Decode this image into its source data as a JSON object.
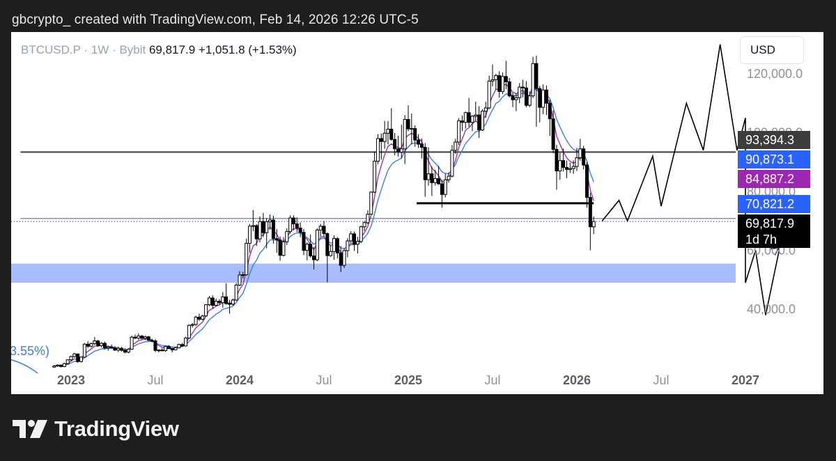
{
  "header": {
    "text": "gbcrypto_ created with TradingView.com, Feb 14, 2026 12:26 UTC-5"
  },
  "legend": {
    "symbol": "BTCUSD.P",
    "sep": "·",
    "interval": "1W",
    "exchange": "Bybit",
    "last": "69,817.9",
    "change": "+1,051.8 (+1.53%)"
  },
  "currency": "USD",
  "footer": {
    "brand": "TradingView"
  },
  "colors": {
    "zone": "#a9bdfc",
    "ma_fast": "#a32fb0",
    "ma_slow": "#3d7bef",
    "tag_gray": "#3c3c3c",
    "tag_blue": "#2962ff",
    "tag_purple": "#9c27b0",
    "tag_black": "#000000"
  },
  "chart_data": {
    "type": "candlestick",
    "symbol": "BTCUSD.P",
    "interval": "1W",
    "ylim": [
      20000,
      131000
    ],
    "yticks": [
      {
        "value": 120000,
        "label": "120,000.0"
      },
      {
        "value": 100000,
        "label": "100,000.0"
      },
      {
        "value": 80000,
        "label": "80,000.0"
      },
      {
        "value": 60000,
        "label": "60,000.0"
      },
      {
        "value": 40000,
        "label": "40,000.0"
      }
    ],
    "xticks": [
      {
        "label": "2023",
        "t": 2023.0,
        "bold": true
      },
      {
        "label": "Jul",
        "t": 2023.5,
        "bold": false
      },
      {
        "label": "2024",
        "t": 2024.0,
        "bold": true
      },
      {
        "label": "Jul",
        "t": 2024.5,
        "bold": false
      },
      {
        "label": "2025",
        "t": 2025.0,
        "bold": true
      },
      {
        "label": "Jul",
        "t": 2025.5,
        "bold": false
      },
      {
        "label": "2026",
        "t": 2026.0,
        "bold": true
      },
      {
        "label": "Jul",
        "t": 2026.5,
        "bold": false
      },
      {
        "label": "2027",
        "t": 2027.0,
        "bold": true
      }
    ],
    "price_tags": [
      {
        "label": "93,394.3",
        "value": 93394.3,
        "color": "#3c3c3c"
      },
      {
        "label": "90,873.1",
        "value": 90873.1,
        "color": "#2962ff"
      },
      {
        "label": "84,887.2",
        "value": 84887.2,
        "color": "#9c27b0"
      },
      {
        "label": "70,821.2",
        "value": 70821.2,
        "color": "#2962ff"
      },
      {
        "label": "69,817.9",
        "value": 69817.9,
        "color": "#000000",
        "sub": "1d 7h"
      }
    ],
    "horizontal_levels": [
      {
        "value": 93394.3,
        "color": "#3c3c3c",
        "from": 2022.7,
        "to": 2027.2,
        "width": 2
      },
      {
        "value": 70821.2,
        "color": "#2962ff",
        "from": 2022.7,
        "to": 2027.2,
        "width": 1
      },
      {
        "value": 76000,
        "color": "#000000",
        "from": 2025.05,
        "to": 2026.1,
        "width": 3
      }
    ],
    "demand_zone": {
      "low": 49000,
      "high": 55500
    },
    "corner_label": "3.55%)",
    "projection_a": [
      [
        2026.15,
        70000
      ],
      [
        2026.25,
        77000
      ],
      [
        2026.3,
        70000
      ],
      [
        2026.45,
        92000
      ],
      [
        2026.5,
        75000
      ],
      [
        2026.65,
        110000
      ],
      [
        2026.75,
        94000
      ],
      [
        2026.85,
        130000
      ],
      [
        2026.95,
        94000
      ],
      [
        2027.0,
        105000
      ],
      [
        2027.0,
        49000
      ]
    ],
    "projection_b": [
      [
        2027.0,
        49000
      ],
      [
        2027.06,
        60000
      ],
      [
        2027.12,
        38000
      ],
      [
        2027.2,
        60000
      ]
    ],
    "projection_arrow": {
      "from": [
        2027.14,
        54000
      ],
      "to": [
        2027.2,
        61000
      ]
    },
    "candles": [
      [
        2022.9,
        20300,
        21000,
        20100,
        20700
      ],
      [
        2022.92,
        20700,
        21300,
        20400,
        21000
      ],
      [
        2022.94,
        21000,
        21200,
        20200,
        20500
      ],
      [
        2022.96,
        20500,
        21800,
        20300,
        21500
      ],
      [
        2022.98,
        21500,
        23000,
        21200,
        22800
      ],
      [
        2023.0,
        22800,
        24200,
        22400,
        23900
      ],
      [
        2023.02,
        23900,
        25200,
        23500,
        24800
      ],
      [
        2023.04,
        24800,
        24900,
        21800,
        22200
      ],
      [
        2023.06,
        22200,
        24000,
        21900,
        23700
      ],
      [
        2023.08,
        23700,
        28500,
        23500,
        28100
      ],
      [
        2023.1,
        28100,
        29100,
        26800,
        27400
      ],
      [
        2023.12,
        27400,
        28700,
        27000,
        28300
      ],
      [
        2023.14,
        28300,
        30500,
        27800,
        29200
      ],
      [
        2023.16,
        29200,
        29600,
        27200,
        27600
      ],
      [
        2023.18,
        27600,
        28800,
        27000,
        28400
      ],
      [
        2023.2,
        28400,
        29000,
        26300,
        26800
      ],
      [
        2023.22,
        26800,
        27600,
        25900,
        27200
      ],
      [
        2023.24,
        27200,
        28000,
        26600,
        26900
      ],
      [
        2023.26,
        26900,
        27500,
        25800,
        26100
      ],
      [
        2023.28,
        26100,
        27300,
        25400,
        26700
      ],
      [
        2023.3,
        26700,
        27200,
        25600,
        26000
      ],
      [
        2023.32,
        26000,
        26800,
        25000,
        25400
      ],
      [
        2023.34,
        25400,
        26700,
        25000,
        26400
      ],
      [
        2023.36,
        26400,
        31000,
        26200,
        30500
      ],
      [
        2023.38,
        30500,
        31400,
        29800,
        30200
      ],
      [
        2023.4,
        30200,
        31800,
        29600,
        30900
      ],
      [
        2023.42,
        30900,
        31200,
        29800,
        30100
      ],
      [
        2023.44,
        30100,
        31000,
        29500,
        30600
      ],
      [
        2023.46,
        30600,
        30900,
        29200,
        29400
      ],
      [
        2023.48,
        29400,
        30000,
        28800,
        29200
      ],
      [
        2023.5,
        29200,
        29800,
        25400,
        26000
      ],
      [
        2023.52,
        26000,
        26400,
        25300,
        26100
      ],
      [
        2023.54,
        26100,
        26800,
        25700,
        25900
      ],
      [
        2023.56,
        25900,
        27600,
        25600,
        27300
      ],
      [
        2023.58,
        27300,
        27800,
        26400,
        26600
      ],
      [
        2023.6,
        26600,
        26900,
        25300,
        26200
      ],
      [
        2023.62,
        26200,
        27100,
        26000,
        26900
      ],
      [
        2023.64,
        26900,
        28300,
        26600,
        28000
      ],
      [
        2023.66,
        28000,
        28600,
        27200,
        27500
      ],
      [
        2023.68,
        27500,
        30600,
        27300,
        30200
      ],
      [
        2023.7,
        30200,
        34800,
        29900,
        34500
      ],
      [
        2023.72,
        34500,
        35300,
        33800,
        34800
      ],
      [
        2023.74,
        34800,
        37800,
        34300,
        37300
      ],
      [
        2023.76,
        37300,
        38500,
        36000,
        36600
      ],
      [
        2023.78,
        36600,
        38100,
        36200,
        37700
      ],
      [
        2023.8,
        37700,
        41800,
        37400,
        41500
      ],
      [
        2023.82,
        41500,
        44500,
        41000,
        43800
      ],
      [
        2023.84,
        43800,
        44700,
        40200,
        41300
      ],
      [
        2023.86,
        41300,
        43600,
        41000,
        42700
      ],
      [
        2023.88,
        42700,
        43400,
        41500,
        42200
      ],
      [
        2023.9,
        42200,
        45800,
        40500,
        44200
      ],
      [
        2023.92,
        44200,
        48800,
        41500,
        41900
      ],
      [
        2023.94,
        41900,
        43200,
        38500,
        41700
      ],
      [
        2023.96,
        41700,
        43600,
        41200,
        43100
      ],
      [
        2023.98,
        43100,
        48900,
        42800,
        48200
      ],
      [
        2024.0,
        48200,
        52900,
        47800,
        51600
      ],
      [
        2024.02,
        51600,
        52700,
        50500,
        51700
      ],
      [
        2024.04,
        51700,
        64000,
        51400,
        62400
      ],
      [
        2024.06,
        62400,
        69000,
        59200,
        68200
      ],
      [
        2024.08,
        68200,
        73700,
        66500,
        68400
      ],
      [
        2024.1,
        68400,
        68900,
        61500,
        63900
      ],
      [
        2024.12,
        63900,
        71500,
        62700,
        69800
      ],
      [
        2024.14,
        69800,
        72700,
        64500,
        66000
      ],
      [
        2024.16,
        66000,
        71000,
        60700,
        69700
      ],
      [
        2024.18,
        69700,
        72200,
        67000,
        70300
      ],
      [
        2024.2,
        70300,
        71800,
        62300,
        64000
      ],
      [
        2024.22,
        64000,
        67200,
        59200,
        63500
      ],
      [
        2024.24,
        63500,
        64700,
        56500,
        58300
      ],
      [
        2024.26,
        58300,
        64500,
        57900,
        62900
      ],
      [
        2024.28,
        62900,
        67500,
        61800,
        66400
      ],
      [
        2024.3,
        66400,
        71900,
        65700,
        71000
      ],
      [
        2024.32,
        71000,
        71900,
        66800,
        69000
      ],
      [
        2024.34,
        69000,
        71200,
        66200,
        67600
      ],
      [
        2024.36,
        67600,
        69500,
        64500,
        66100
      ],
      [
        2024.38,
        66100,
        67300,
        58400,
        60000
      ],
      [
        2024.4,
        60000,
        62700,
        56600,
        62100
      ],
      [
        2024.42,
        62100,
        65400,
        57500,
        58100
      ],
      [
        2024.44,
        58100,
        61100,
        53500,
        56800
      ],
      [
        2024.46,
        56800,
        67500,
        56300,
        66900
      ],
      [
        2024.48,
        66900,
        69000,
        64600,
        68200
      ],
      [
        2024.5,
        68200,
        70000,
        64800,
        65700
      ],
      [
        2024.52,
        65700,
        66100,
        49100,
        58200
      ],
      [
        2024.54,
        58200,
        61700,
        57800,
        59600
      ],
      [
        2024.56,
        59600,
        65100,
        56800,
        64000
      ],
      [
        2024.58,
        64000,
        64500,
        57300,
        59100
      ],
      [
        2024.6,
        59100,
        61400,
        52600,
        54900
      ],
      [
        2024.62,
        54900,
        60700,
        54000,
        59900
      ],
      [
        2024.64,
        59900,
        64100,
        57600,
        63200
      ],
      [
        2024.66,
        63200,
        66500,
        62500,
        65600
      ],
      [
        2024.68,
        65600,
        66400,
        59800,
        62100
      ],
      [
        2024.7,
        62100,
        64600,
        58900,
        63000
      ],
      [
        2024.72,
        63000,
        68400,
        62500,
        68000
      ],
      [
        2024.74,
        68000,
        70000,
        66600,
        69400
      ],
      [
        2024.76,
        69400,
        73600,
        68900,
        72300
      ],
      [
        2024.78,
        72300,
        80000,
        72000,
        79800
      ],
      [
        2024.8,
        79800,
        93500,
        79500,
        90300
      ],
      [
        2024.82,
        90300,
        99500,
        89300,
        98000
      ],
      [
        2024.84,
        98000,
        99700,
        90800,
        97000
      ],
      [
        2024.86,
        97000,
        104000,
        94500,
        99800
      ],
      [
        2024.88,
        99800,
        104000,
        96000,
        101200
      ],
      [
        2024.9,
        101200,
        108300,
        97300,
        97700
      ],
      [
        2024.92,
        97700,
        99900,
        92300,
        94500
      ],
      [
        2024.94,
        94500,
        98900,
        91900,
        93400
      ],
      [
        2024.96,
        93400,
        102700,
        91200,
        94500
      ],
      [
        2024.98,
        94500,
        106000,
        89300,
        104500
      ],
      [
        2025.0,
        104500,
        109300,
        100500,
        101300
      ],
      [
        2025.02,
        101300,
        106500,
        96000,
        101400
      ],
      [
        2025.04,
        101400,
        102500,
        95200,
        97500
      ],
      [
        2025.06,
        97500,
        99500,
        94800,
        96100
      ],
      [
        2025.08,
        96100,
        98000,
        91200,
        95000
      ],
      [
        2025.1,
        95000,
        96500,
        78200,
        84000
      ],
      [
        2025.12,
        84000,
        95000,
        82000,
        86000
      ],
      [
        2025.14,
        86000,
        88500,
        78500,
        83000
      ],
      [
        2025.16,
        83000,
        87300,
        82000,
        84400
      ],
      [
        2025.18,
        84400,
        88700,
        82300,
        82600
      ],
      [
        2025.2,
        82600,
        84000,
        74500,
        79000
      ],
      [
        2025.22,
        79000,
        86100,
        78000,
        84000
      ],
      [
        2025.24,
        84000,
        86500,
        83000,
        85200
      ],
      [
        2025.26,
        85200,
        95800,
        84800,
        94000
      ],
      [
        2025.28,
        94000,
        97900,
        92800,
        96800
      ],
      [
        2025.3,
        96800,
        104900,
        95800,
        104000
      ],
      [
        2025.32,
        104000,
        105800,
        100600,
        103500
      ],
      [
        2025.34,
        103500,
        107200,
        101400,
        106800
      ],
      [
        2025.36,
        106800,
        111800,
        102000,
        103500
      ],
      [
        2025.38,
        103500,
        106000,
        100500,
        105600
      ],
      [
        2025.4,
        105600,
        110500,
        104000,
        106000
      ],
      [
        2025.42,
        106000,
        109000,
        98200,
        100900
      ],
      [
        2025.44,
        100900,
        108000,
        100600,
        107300
      ],
      [
        2025.46,
        107300,
        110500,
        105000,
        108400
      ],
      [
        2025.48,
        108400,
        119400,
        108000,
        117500
      ],
      [
        2025.5,
        117500,
        123200,
        115700,
        118000
      ],
      [
        2025.52,
        118000,
        120000,
        114600,
        119400
      ],
      [
        2025.54,
        119400,
        120900,
        111900,
        114000
      ],
      [
        2025.56,
        114000,
        120500,
        113100,
        119100
      ],
      [
        2025.58,
        119100,
        124400,
        114800,
        117300
      ],
      [
        2025.6,
        117300,
        118600,
        112000,
        112500
      ],
      [
        2025.62,
        112500,
        113600,
        108700,
        111200
      ],
      [
        2025.64,
        111200,
        113400,
        107300,
        111900
      ],
      [
        2025.66,
        111900,
        116800,
        110000,
        115500
      ],
      [
        2025.68,
        115500,
        118000,
        112000,
        115200
      ],
      [
        2025.7,
        115200,
        117500,
        108600,
        109300
      ],
      [
        2025.72,
        109300,
        114000,
        108700,
        112500
      ],
      [
        2025.74,
        112500,
        125800,
        111800,
        123500
      ],
      [
        2025.76,
        123500,
        126200,
        102000,
        115000
      ],
      [
        2025.78,
        115000,
        115900,
        103500,
        108600
      ],
      [
        2025.8,
        108600,
        116400,
        106300,
        114500
      ],
      [
        2025.82,
        114500,
        116000,
        106000,
        110000
      ],
      [
        2025.84,
        110000,
        111200,
        98900,
        104700
      ],
      [
        2025.86,
        104700,
        107500,
        93000,
        94300
      ],
      [
        2025.88,
        94300,
        95900,
        80600,
        87000
      ],
      [
        2025.9,
        87000,
        93100,
        84000,
        90500
      ],
      [
        2025.92,
        90500,
        94600,
        86800,
        88200
      ],
      [
        2025.94,
        88200,
        90500,
        84500,
        87500
      ],
      [
        2025.96,
        87500,
        89800,
        86300,
        87800
      ],
      [
        2025.98,
        87800,
        90600,
        86000,
        88500
      ],
      [
        2026.0,
        88500,
        94800,
        87000,
        91500
      ],
      [
        2026.02,
        91500,
        97900,
        90500,
        94500
      ],
      [
        2026.04,
        94500,
        95500,
        87500,
        89000
      ],
      [
        2026.06,
        89000,
        90000,
        74500,
        78000
      ],
      [
        2026.08,
        78000,
        79500,
        60000,
        68000
      ],
      [
        2026.1,
        68000,
        71500,
        65500,
        69817.9
      ]
    ]
  }
}
